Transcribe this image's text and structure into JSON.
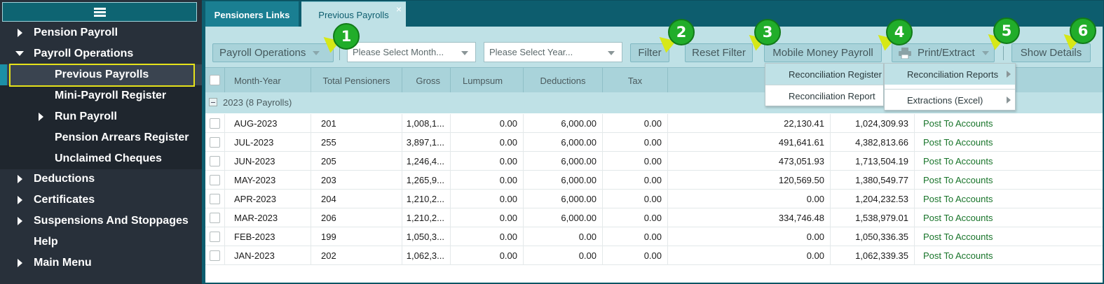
{
  "sidebar": {
    "items": [
      {
        "label": "Pension Payroll",
        "arrow": "right"
      },
      {
        "label": "Payroll Operations",
        "arrow": "down"
      },
      {
        "label": "Previous Payrolls",
        "arrow": "none"
      },
      {
        "label": "Mini-Payroll Register",
        "arrow": "none"
      },
      {
        "label": "Run Payroll",
        "arrow": "right"
      },
      {
        "label": "Pension Arrears Register",
        "arrow": "none"
      },
      {
        "label": "Unclaimed Cheques",
        "arrow": "none"
      },
      {
        "label": "Deductions",
        "arrow": "right"
      },
      {
        "label": "Certificates",
        "arrow": "right"
      },
      {
        "label": "Suspensions And Stoppages",
        "arrow": "right"
      },
      {
        "label": "Help",
        "arrow": "none"
      },
      {
        "label": "Main Menu",
        "arrow": "right"
      }
    ]
  },
  "tabs": {
    "tab1": "Pensioners Links",
    "tab2": "Previous Payrolls",
    "tab2_close": "×"
  },
  "toolbar": {
    "payroll_operations": "Payroll Operations",
    "month_placeholder": "Please Select Month...",
    "year_placeholder": "Please Select Year...",
    "filter": "Filter",
    "reset_filter": "Reset Filter",
    "mobile_money": "Mobile Money Payroll",
    "print_extract": "Print/Extract",
    "show_details": "Show Details"
  },
  "badges": [
    "1",
    "2",
    "3",
    "4",
    "5",
    "6"
  ],
  "menus": {
    "left": [
      "Reconciliation Register",
      "Reconciliation Report"
    ],
    "right": [
      "Reconciliation Reports",
      "Extractions (Excel)"
    ]
  },
  "grid": {
    "headers": {
      "month_year": "Month-Year",
      "total_pensioners": "Total Pensioners",
      "gross": "Gross",
      "lumpsum": "Lumpsum",
      "deductions": "Deductions",
      "tax": "Tax"
    },
    "group_label": "2023 (8 Payrolls)",
    "rows": [
      {
        "month": "AUG-2023",
        "total": "201",
        "gross": "1,008,1...",
        "lumpsum": "0.00",
        "deductions": "6,000.00",
        "tax": "0.00",
        "col7": "22,130.41",
        "col8": "1,024,309.93",
        "status": "Post To Accounts"
      },
      {
        "month": "JUL-2023",
        "total": "255",
        "gross": "3,897,1...",
        "lumpsum": "0.00",
        "deductions": "6,000.00",
        "tax": "0.00",
        "col7": "491,641.61",
        "col8": "4,382,813.66",
        "status": "Post To Accounts"
      },
      {
        "month": "JUN-2023",
        "total": "205",
        "gross": "1,246,4...",
        "lumpsum": "0.00",
        "deductions": "6,000.00",
        "tax": "0.00",
        "col7": "473,051.93",
        "col8": "1,713,504.19",
        "status": "Post To Accounts"
      },
      {
        "month": "MAY-2023",
        "total": "203",
        "gross": "1,265,9...",
        "lumpsum": "0.00",
        "deductions": "6,000.00",
        "tax": "0.00",
        "col7": "120,569.50",
        "col8": "1,380,549.77",
        "status": "Post To Accounts"
      },
      {
        "month": "APR-2023",
        "total": "204",
        "gross": "1,210,2...",
        "lumpsum": "0.00",
        "deductions": "6,000.00",
        "tax": "0.00",
        "col7": "0.00",
        "col8": "1,204,232.53",
        "status": "Post To Accounts"
      },
      {
        "month": "MAR-2023",
        "total": "206",
        "gross": "1,210,2...",
        "lumpsum": "0.00",
        "deductions": "6,000.00",
        "tax": "0.00",
        "col7": "334,746.48",
        "col8": "1,538,979.01",
        "status": "Post To Accounts"
      },
      {
        "month": "FEB-2023",
        "total": "199",
        "gross": "1,050,3...",
        "lumpsum": "0.00",
        "deductions": "0.00",
        "tax": "0.00",
        "col7": "0.00",
        "col8": "1,050,336.35",
        "status": "Post To Accounts"
      },
      {
        "month": "JAN-2023",
        "total": "202",
        "gross": "1,062,3...",
        "lumpsum": "0.00",
        "deductions": "0.00",
        "tax": "0.00",
        "col7": "0.00",
        "col8": "1,062,339.35",
        "status": "Post To Accounts"
      }
    ]
  },
  "colors": {
    "teal": "#0d5d6e",
    "light_teal": "#bfe1e6",
    "badge_green": "#21ad2a",
    "highlight_yellow": "#e6e21a",
    "link_green": "#18742a"
  }
}
